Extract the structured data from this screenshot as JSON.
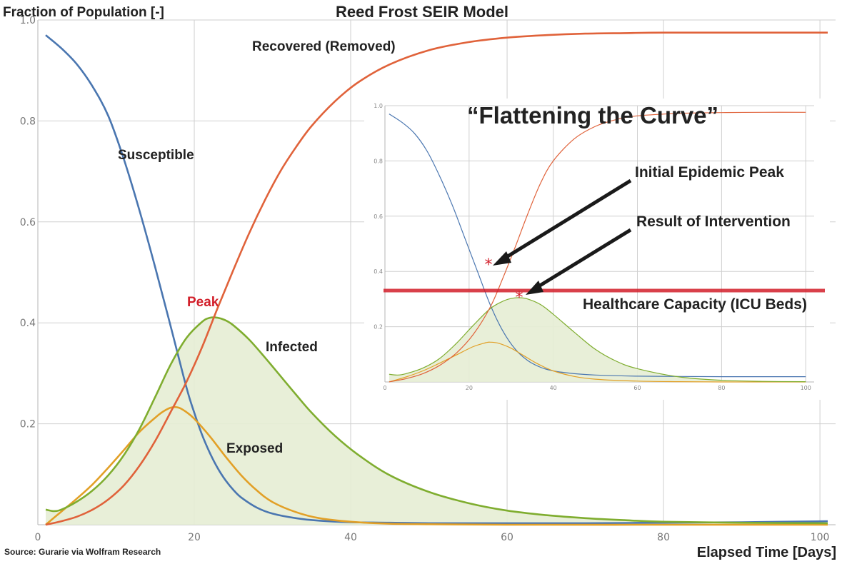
{
  "chart_data": [
    {
      "type": "line",
      "title": "Reed Frost SEIR Model",
      "ylabel": "Fraction of Population [-]",
      "xlabel": "Elapsed Time [Days]",
      "source": "Source: Gurarie  via Wolfram Research",
      "xlim": [
        0,
        102
      ],
      "ylim": [
        0,
        1.0
      ],
      "x_ticks": [
        "0",
        "20",
        "40",
        "60",
        "80",
        "100"
      ],
      "y_ticks": [
        "0.2",
        "0.4",
        "0.6",
        "0.8",
        "1.0"
      ],
      "grid": true,
      "annotations": [
        "Peak"
      ],
      "colors": {
        "Susceptible": "#4a76b0",
        "Exposed": "#e2a027",
        "Infected": "#7fad2f",
        "Recovered (Removed)": "#e0623a",
        "peak": "#d21f2a"
      },
      "series": [
        {
          "name": "Susceptible",
          "x": [
            1,
            3,
            5,
            7,
            9,
            11,
            13,
            15,
            17,
            19,
            20,
            21,
            22,
            23,
            24,
            25,
            26,
            28,
            30,
            33,
            36,
            40,
            45,
            50,
            60,
            70,
            80,
            90,
            101
          ],
          "values": [
            0.97,
            0.944,
            0.912,
            0.868,
            0.81,
            0.724,
            0.622,
            0.51,
            0.392,
            0.272,
            0.222,
            0.178,
            0.142,
            0.112,
            0.088,
            0.069,
            0.054,
            0.034,
            0.022,
            0.013,
            0.008,
            0.005,
            0.004,
            0.003,
            0.003,
            0.003,
            0.004,
            0.005,
            0.007
          ]
        },
        {
          "name": "Exposed",
          "x": [
            1,
            3,
            5,
            7,
            9,
            11,
            13,
            15,
            16,
            17,
            18,
            19,
            20,
            22,
            24,
            26,
            28,
            30,
            33,
            36,
            40,
            45,
            50,
            60,
            80,
            101
          ],
          "values": [
            0.0,
            0.026,
            0.052,
            0.08,
            0.113,
            0.148,
            0.184,
            0.212,
            0.224,
            0.232,
            0.232,
            0.223,
            0.21,
            0.175,
            0.135,
            0.098,
            0.068,
            0.045,
            0.025,
            0.013,
            0.006,
            0.002,
            0.001,
            0.0,
            0.0,
            0.0
          ]
        },
        {
          "name": "Infected",
          "x": [
            1,
            2,
            3,
            5,
            7,
            9,
            11,
            13,
            15,
            17,
            19,
            21,
            22,
            23,
            24,
            25,
            27,
            29,
            31,
            33,
            35,
            38,
            41,
            45,
            50,
            55,
            60,
            65,
            70,
            75,
            80,
            90,
            101
          ],
          "values": [
            0.03,
            0.027,
            0.03,
            0.046,
            0.068,
            0.098,
            0.138,
            0.19,
            0.253,
            0.318,
            0.37,
            0.402,
            0.41,
            0.41,
            0.405,
            0.395,
            0.367,
            0.332,
            0.295,
            0.258,
            0.222,
            0.176,
            0.138,
            0.098,
            0.065,
            0.043,
            0.028,
            0.019,
            0.013,
            0.009,
            0.006,
            0.004,
            0.003
          ]
        },
        {
          "name": "Recovered (Removed)",
          "x": [
            1,
            3,
            5,
            7,
            9,
            11,
            13,
            15,
            17,
            19,
            21,
            23,
            25,
            27,
            29,
            31,
            33,
            35,
            38,
            41,
            45,
            50,
            55,
            60,
            65,
            70,
            75,
            80,
            90,
            101
          ],
          "values": [
            0.0,
            0.007,
            0.016,
            0.03,
            0.05,
            0.078,
            0.117,
            0.166,
            0.224,
            0.283,
            0.352,
            0.43,
            0.505,
            0.577,
            0.642,
            0.7,
            0.748,
            0.79,
            0.839,
            0.877,
            0.912,
            0.94,
            0.956,
            0.965,
            0.97,
            0.973,
            0.974,
            0.975,
            0.975,
            0.975
          ]
        }
      ]
    },
    {
      "type": "line",
      "title": "“Flattening the Curve”",
      "xlim": [
        0,
        102
      ],
      "ylim": [
        0,
        1.0
      ],
      "x_ticks": [
        "0",
        "20",
        "40",
        "60",
        "80",
        "100"
      ],
      "y_ticks": [
        "0.2",
        "0.4",
        "0.6",
        "0.8",
        "1.0"
      ],
      "grid": true,
      "annotations": [
        "Initial Epidemic Peak",
        "Result of Intervention",
        "Healthcare Capacity (ICU Beds)"
      ],
      "markers": [
        {
          "label": "Initial Epidemic Peak",
          "x": 24,
          "y": 0.425
        },
        {
          "label": "Result of Intervention",
          "x": 32,
          "y": 0.305
        }
      ],
      "capacity_line": {
        "label": "Healthcare Capacity (ICU Beds)",
        "y": 0.335
      },
      "series": [
        {
          "name": "Susceptible",
          "x": [
            1,
            4,
            7,
            10,
            13,
            16,
            19,
            22,
            25,
            28,
            31,
            34,
            37,
            40,
            45,
            50,
            60,
            70,
            80,
            90,
            100
          ],
          "values": [
            0.97,
            0.94,
            0.9,
            0.836,
            0.745,
            0.64,
            0.52,
            0.4,
            0.28,
            0.185,
            0.118,
            0.077,
            0.053,
            0.04,
            0.03,
            0.025,
            0.021,
            0.02,
            0.019,
            0.019,
            0.019
          ]
        },
        {
          "name": "Exposed",
          "x": [
            1,
            5,
            9,
            13,
            17,
            21,
            24,
            25,
            27,
            30,
            33,
            36,
            40,
            45,
            50,
            60,
            70,
            80,
            100
          ],
          "values": [
            0.0,
            0.018,
            0.04,
            0.068,
            0.098,
            0.128,
            0.142,
            0.144,
            0.14,
            0.122,
            0.095,
            0.068,
            0.04,
            0.02,
            0.01,
            0.003,
            0.001,
            0.0,
            0.0
          ]
        },
        {
          "name": "Infected",
          "x": [
            1,
            3,
            5,
            9,
            13,
            17,
            21,
            25,
            28,
            30,
            32,
            34,
            37,
            40,
            45,
            50,
            55,
            60,
            70,
            80,
            90,
            100
          ],
          "values": [
            0.028,
            0.025,
            0.03,
            0.05,
            0.085,
            0.14,
            0.205,
            0.265,
            0.292,
            0.302,
            0.305,
            0.3,
            0.28,
            0.245,
            0.18,
            0.118,
            0.075,
            0.048,
            0.018,
            0.006,
            0.002,
            0.001
          ]
        },
        {
          "name": "Recovered (Removed)",
          "x": [
            1,
            5,
            9,
            13,
            17,
            21,
            25,
            28,
            31,
            34,
            37,
            40,
            45,
            50,
            55,
            60,
            70,
            80,
            90,
            100
          ],
          "values": [
            0.0,
            0.012,
            0.03,
            0.06,
            0.105,
            0.172,
            0.27,
            0.375,
            0.49,
            0.61,
            0.72,
            0.8,
            0.88,
            0.925,
            0.95,
            0.963,
            0.972,
            0.975,
            0.976,
            0.976
          ]
        }
      ]
    }
  ],
  "labels": {
    "title": "Reed Frost SEIR Model",
    "ylabel": "Fraction of Population [-]",
    "xlabel": "Elapsed Time [Days]",
    "source": "Source: Gurarie  via Wolfram Research",
    "susceptible": "Susceptible",
    "recovered": "Recovered (Removed)",
    "infected": "Infected",
    "exposed": "Exposed",
    "peak": "Peak",
    "inset_title": "“Flattening the Curve”",
    "initial_peak": "Initial Epidemic Peak",
    "intervention": "Result of Intervention",
    "capacity": "Healthcare Capacity (ICU Beds)"
  }
}
